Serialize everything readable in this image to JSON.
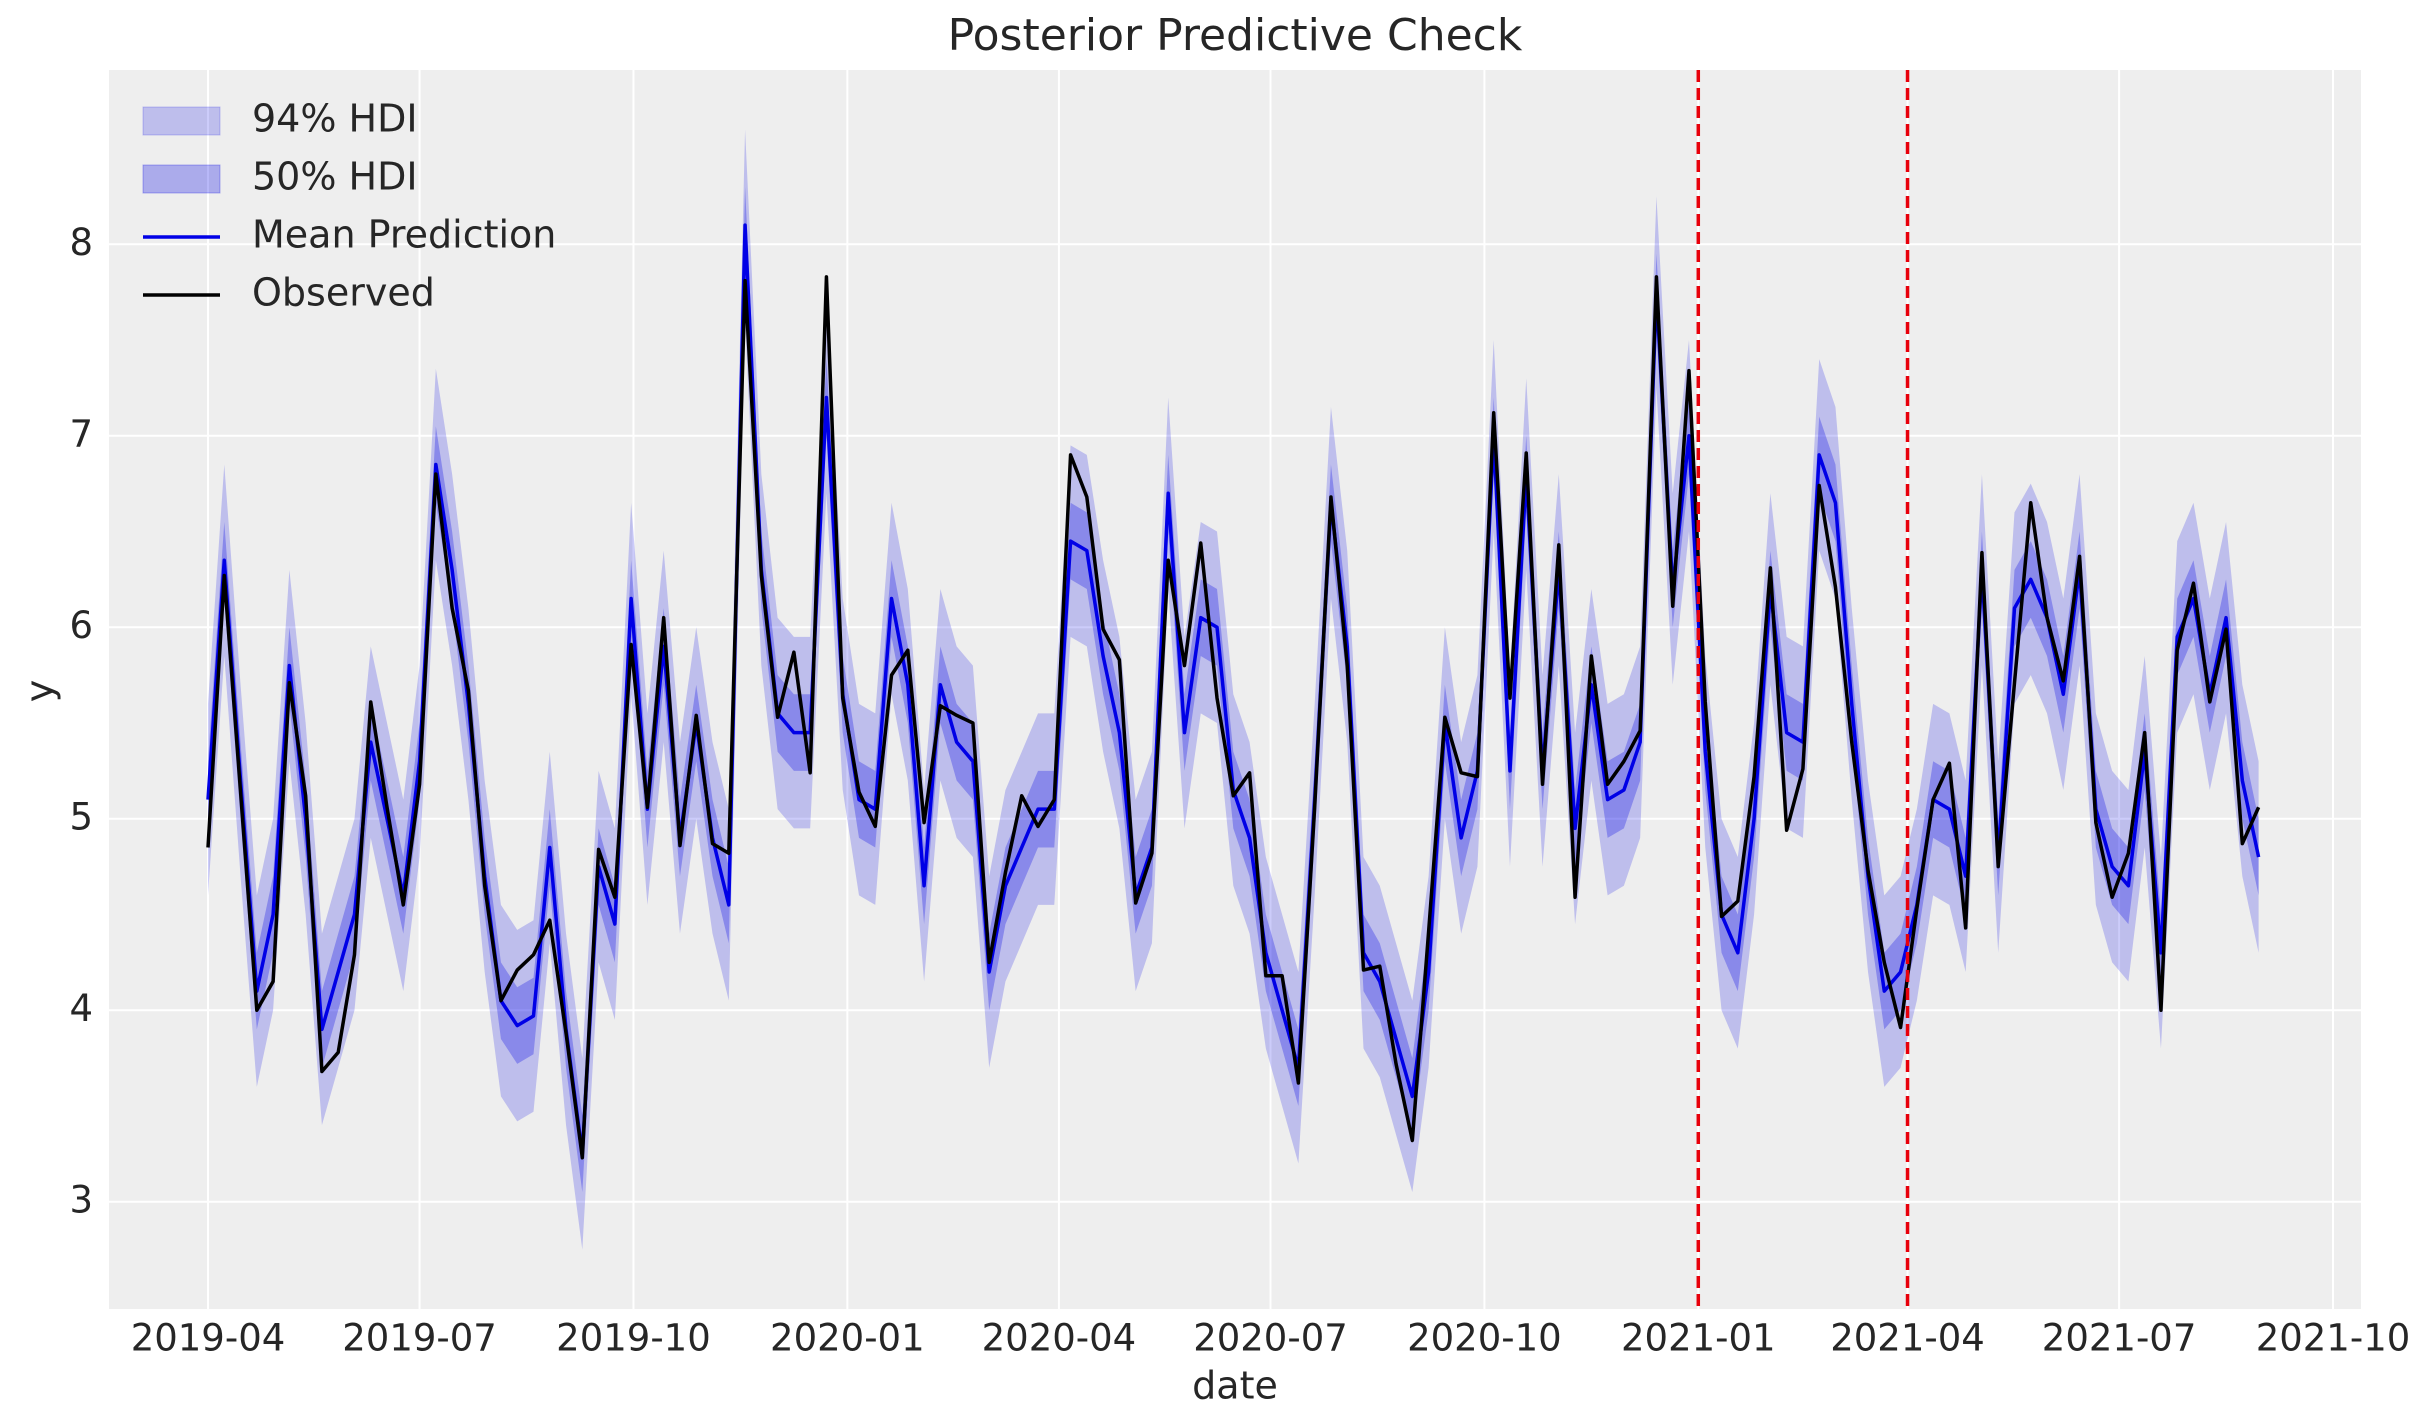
{
  "chart_data": {
    "type": "line",
    "title": "Posterior Predictive Check",
    "x_label": "date",
    "y_label": "y",
    "xticks": [
      "2019-04",
      "2019-07",
      "2019-10",
      "2020-01",
      "2020-04",
      "2020-07",
      "2020-10",
      "2021-01",
      "2021-04",
      "2021-07",
      "2021-10"
    ],
    "ylim": [
      2.44,
      8.91
    ],
    "yticks": [
      3,
      4,
      5,
      6,
      7,
      8
    ],
    "grid": true,
    "legend": "upper left",
    "vlines": [
      {
        "x": "2021-01",
        "color": "#e8000b"
      },
      {
        "x": "2021-04",
        "color": "#e8000b"
      }
    ],
    "series": [
      {
        "name": "94% HDI",
        "kind": "band",
        "color": "rgba(0,0,230,0.2)",
        "lower": [
          4.6,
          5.85,
          4.7,
          3.6,
          4.0,
          5.3,
          4.5,
          3.4,
          3.7,
          4.0,
          4.9,
          4.5,
          4.1,
          4.8,
          6.35,
          5.8,
          5.1,
          4.2,
          3.55,
          3.42,
          3.47,
          4.35,
          3.4,
          2.75,
          4.25,
          3.95,
          5.65,
          4.55,
          5.4,
          4.4,
          5.0,
          4.4,
          4.05,
          7.6,
          5.8,
          5.05,
          4.95,
          4.95,
          6.7,
          5.15,
          4.6,
          4.55,
          5.65,
          5.2,
          4.15,
          5.2,
          4.9,
          4.8,
          3.7,
          4.15,
          4.35,
          4.55,
          4.55,
          5.95,
          5.9,
          5.35,
          4.95,
          4.1,
          4.35,
          6.2,
          4.95,
          5.55,
          5.5,
          4.65,
          4.4,
          3.8,
          3.5,
          3.2,
          4.6,
          6.15,
          5.4,
          3.8,
          3.65,
          3.35,
          3.05,
          3.7,
          5.0,
          4.4,
          4.75,
          6.5,
          4.75,
          6.3,
          4.75,
          5.8,
          4.45,
          5.2,
          4.6,
          4.65,
          4.9,
          7.25,
          5.7,
          6.5,
          4.85,
          4.0,
          3.8,
          4.5,
          5.7,
          4.95,
          4.9,
          6.4,
          6.15,
          5.1,
          4.2,
          3.6,
          3.7,
          4.05,
          4.6,
          4.55,
          4.2,
          5.8,
          4.3,
          5.6,
          5.75,
          5.55,
          5.15,
          5.8,
          4.55,
          4.25,
          4.15,
          4.85,
          3.8,
          5.45,
          5.65,
          5.15,
          5.55,
          4.7,
          4.3
        ],
        "upper": [
          5.6,
          6.85,
          5.7,
          4.6,
          5.0,
          6.3,
          5.5,
          4.4,
          4.7,
          5.0,
          5.9,
          5.5,
          5.1,
          5.8,
          7.35,
          6.8,
          6.1,
          5.2,
          4.55,
          4.42,
          4.47,
          5.35,
          4.4,
          3.75,
          5.25,
          4.95,
          6.65,
          5.55,
          6.4,
          5.4,
          6.0,
          5.4,
          5.05,
          8.6,
          6.8,
          6.05,
          5.95,
          5.95,
          7.7,
          6.15,
          5.6,
          5.55,
          6.65,
          6.2,
          5.15,
          6.2,
          5.9,
          5.8,
          4.7,
          5.15,
          5.35,
          5.55,
          5.55,
          6.95,
          6.9,
          6.35,
          5.95,
          5.1,
          5.35,
          7.2,
          5.95,
          6.55,
          6.5,
          5.65,
          5.4,
          4.8,
          4.5,
          4.2,
          5.6,
          7.15,
          6.4,
          4.8,
          4.65,
          4.35,
          4.05,
          4.7,
          6.0,
          5.4,
          5.75,
          7.5,
          5.75,
          7.3,
          5.75,
          6.8,
          5.45,
          6.2,
          5.6,
          5.65,
          5.9,
          8.25,
          6.7,
          7.5,
          5.85,
          5.0,
          4.8,
          5.5,
          6.7,
          5.95,
          5.9,
          7.4,
          7.15,
          6.1,
          5.2,
          4.6,
          4.7,
          5.05,
          5.6,
          5.55,
          5.2,
          6.8,
          5.3,
          6.6,
          6.75,
          6.55,
          6.15,
          6.8,
          5.55,
          5.25,
          5.15,
          5.85,
          4.8,
          6.45,
          6.65,
          6.15,
          6.55,
          5.7,
          5.3
        ]
      },
      {
        "name": "50% HDI",
        "kind": "band",
        "color": "rgba(0,0,230,0.28)",
        "lower": [
          4.9,
          6.15,
          5.0,
          3.9,
          4.3,
          5.6,
          4.8,
          3.7,
          4.0,
          4.3,
          5.2,
          4.8,
          4.4,
          5.1,
          6.65,
          6.1,
          5.4,
          4.5,
          3.85,
          3.72,
          3.77,
          4.65,
          3.7,
          3.05,
          4.55,
          4.25,
          5.95,
          4.85,
          5.7,
          4.7,
          5.3,
          4.7,
          4.35,
          7.9,
          6.1,
          5.35,
          5.25,
          5.25,
          7.0,
          5.45,
          4.9,
          4.85,
          5.95,
          5.5,
          4.45,
          5.5,
          5.2,
          5.1,
          4.0,
          4.45,
          4.65,
          4.85,
          4.85,
          6.25,
          6.2,
          5.65,
          5.25,
          4.4,
          4.65,
          6.5,
          5.25,
          5.85,
          5.8,
          4.95,
          4.7,
          4.1,
          3.8,
          3.5,
          4.9,
          6.45,
          5.7,
          4.1,
          3.95,
          3.65,
          3.35,
          4.0,
          5.3,
          4.7,
          5.05,
          6.8,
          5.05,
          6.6,
          5.05,
          6.1,
          4.75,
          5.5,
          4.9,
          4.95,
          5.2,
          7.55,
          6.0,
          6.8,
          5.15,
          4.3,
          4.1,
          4.8,
          6.0,
          5.25,
          5.2,
          6.7,
          6.45,
          5.4,
          4.5,
          3.9,
          4.0,
          4.35,
          4.9,
          4.85,
          4.5,
          6.1,
          4.6,
          5.9,
          6.05,
          5.85,
          5.45,
          6.1,
          4.85,
          4.55,
          4.45,
          5.15,
          4.1,
          5.75,
          5.95,
          5.45,
          5.85,
          5.0,
          4.6
        ],
        "upper": [
          5.3,
          6.55,
          5.4,
          4.3,
          4.7,
          6.0,
          5.2,
          4.1,
          4.4,
          4.7,
          5.6,
          5.2,
          4.8,
          5.5,
          7.05,
          6.5,
          5.8,
          4.9,
          4.25,
          4.12,
          4.17,
          5.05,
          4.1,
          3.45,
          4.95,
          4.65,
          6.35,
          5.25,
          6.1,
          5.1,
          5.7,
          5.1,
          4.75,
          8.3,
          6.5,
          5.75,
          5.65,
          5.65,
          7.4,
          5.85,
          5.3,
          5.25,
          6.35,
          5.9,
          4.85,
          5.9,
          5.6,
          5.5,
          4.4,
          4.85,
          5.05,
          5.25,
          5.25,
          6.65,
          6.6,
          6.05,
          5.65,
          4.8,
          5.05,
          6.9,
          5.65,
          6.25,
          6.2,
          5.35,
          5.1,
          4.5,
          4.2,
          3.9,
          5.3,
          6.85,
          6.1,
          4.5,
          4.35,
          4.05,
          3.75,
          4.4,
          5.7,
          5.1,
          5.45,
          7.2,
          5.45,
          7.0,
          5.45,
          6.5,
          5.15,
          5.9,
          5.3,
          5.35,
          5.6,
          7.95,
          6.4,
          7.2,
          5.55,
          4.7,
          4.5,
          5.2,
          6.4,
          5.65,
          5.6,
          7.1,
          6.85,
          5.8,
          4.9,
          4.3,
          4.4,
          4.75,
          5.3,
          5.25,
          4.9,
          6.5,
          5.0,
          6.3,
          6.45,
          6.25,
          5.85,
          6.5,
          5.25,
          4.95,
          4.85,
          5.55,
          4.5,
          6.15,
          6.35,
          5.85,
          6.25,
          5.4,
          5.0
        ]
      },
      {
        "name": "Mean Prediction",
        "kind": "line",
        "color": "#0000e6",
        "values": [
          5.1,
          6.35,
          5.2,
          4.1,
          4.5,
          5.8,
          5.0,
          3.9,
          4.2,
          4.5,
          5.4,
          5.0,
          4.6,
          5.3,
          6.85,
          6.3,
          5.6,
          4.7,
          4.05,
          3.92,
          3.97,
          4.85,
          3.9,
          3.25,
          4.75,
          4.45,
          6.15,
          5.05,
          5.9,
          4.9,
          5.5,
          4.9,
          4.55,
          8.1,
          6.3,
          5.55,
          5.45,
          5.45,
          7.2,
          5.65,
          5.1,
          5.05,
          6.15,
          5.7,
          4.65,
          5.7,
          5.4,
          5.3,
          4.2,
          4.65,
          4.85,
          5.05,
          5.05,
          6.45,
          6.4,
          5.85,
          5.45,
          4.6,
          4.85,
          6.7,
          5.45,
          6.05,
          6.0,
          5.15,
          4.9,
          4.3,
          4.0,
          3.7,
          5.1,
          6.65,
          5.9,
          4.3,
          4.15,
          3.85,
          3.55,
          4.2,
          5.5,
          4.9,
          5.25,
          7.0,
          5.25,
          6.8,
          5.25,
          6.3,
          4.95,
          5.7,
          5.1,
          5.15,
          5.4,
          7.75,
          6.2,
          7.0,
          5.35,
          4.5,
          4.3,
          5.0,
          6.2,
          5.45,
          5.4,
          6.9,
          6.65,
          5.6,
          4.7,
          4.1,
          4.2,
          4.55,
          5.1,
          5.05,
          4.7,
          6.3,
          4.8,
          6.1,
          6.25,
          6.05,
          5.65,
          6.3,
          5.05,
          4.75,
          4.65,
          5.35,
          4.3,
          5.95,
          6.15,
          5.65,
          6.05,
          5.2,
          4.8
        ]
      },
      {
        "name": "Observed",
        "kind": "line",
        "color": "#000000",
        "values": [
          4.85,
          6.27,
          5.14,
          4.0,
          4.15,
          5.71,
          5.12,
          3.68,
          3.78,
          4.29,
          5.61,
          5.06,
          4.55,
          5.18,
          6.8,
          6.1,
          5.67,
          4.65,
          4.05,
          4.21,
          4.29,
          4.47,
          3.88,
          3.23,
          4.84,
          4.59,
          5.91,
          5.06,
          6.05,
          4.86,
          5.54,
          4.87,
          4.82,
          7.81,
          6.27,
          5.53,
          5.87,
          5.24,
          7.83,
          5.63,
          5.14,
          4.96,
          5.75,
          5.88,
          4.98,
          5.59,
          5.54,
          5.5,
          4.25,
          4.72,
          5.12,
          4.96,
          5.1,
          6.9,
          6.68,
          5.99,
          5.83,
          4.56,
          4.82,
          6.35,
          5.8,
          6.44,
          5.63,
          5.12,
          5.24,
          4.18,
          4.18,
          3.62,
          5.06,
          6.68,
          5.8,
          4.21,
          4.23,
          3.72,
          3.32,
          4.41,
          5.53,
          5.24,
          5.22,
          7.12,
          5.63,
          6.91,
          5.18,
          6.43,
          4.59,
          5.85,
          5.18,
          5.3,
          5.46,
          7.83,
          6.11,
          7.34,
          5.61,
          4.49,
          4.57,
          5.22,
          6.31,
          4.94,
          5.26,
          6.74,
          6.21,
          5.4,
          4.73,
          4.25,
          3.91,
          4.53,
          5.1,
          5.29,
          4.43,
          6.39,
          4.75,
          5.71,
          6.65,
          6.05,
          5.72,
          6.37,
          4.98,
          4.59,
          4.82,
          5.45,
          4.0,
          5.88,
          6.23,
          5.61,
          5.99,
          4.87,
          5.06
        ]
      }
    ]
  }
}
